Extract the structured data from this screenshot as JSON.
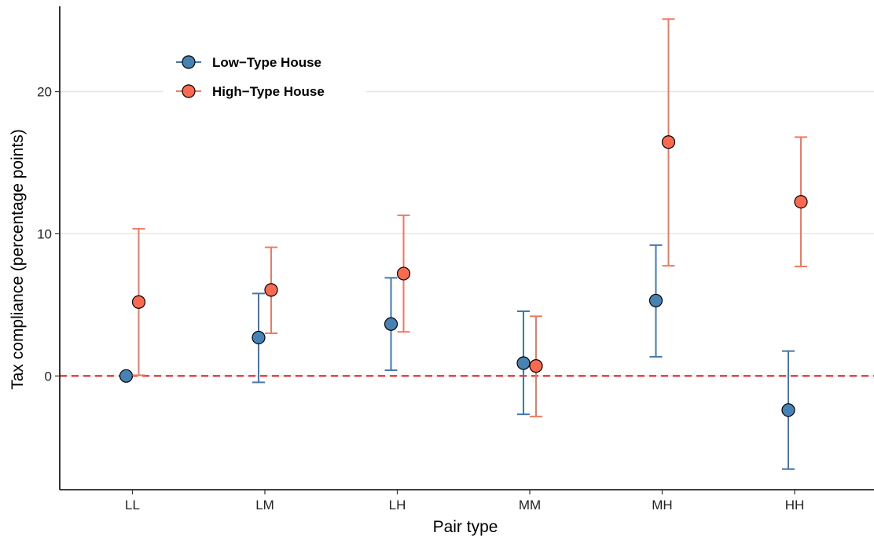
{
  "chart_data": {
    "type": "scatter",
    "title": "",
    "xlabel": "Pair type",
    "ylabel": "Tax compliance (percentage points)",
    "categories": [
      "LL",
      "LM",
      "LH",
      "MM",
      "MH",
      "HH"
    ],
    "ylim": [
      -8,
      26
    ],
    "yticks": [
      0,
      10,
      20
    ],
    "grid": "horizontal major",
    "reference_line": {
      "y": 0,
      "style": "dashed",
      "color": "#e41a1c"
    },
    "legend_position": "top-left",
    "series": [
      {
        "name": "Low−Type House",
        "color": "#4477aa",
        "fill": "#4682b4",
        "values": [
          0,
          2.7,
          3.65,
          0.9,
          5.3,
          -2.4
        ],
        "lower": [
          null,
          -0.45,
          0.4,
          -2.7,
          1.35,
          -6.55
        ],
        "upper": [
          null,
          5.8,
          6.9,
          4.55,
          9.2,
          1.75
        ]
      },
      {
        "name": "High−Type House",
        "color": "#f4775e",
        "fill": "#fa6a50",
        "values": [
          5.2,
          6.05,
          7.2,
          0.7,
          16.45,
          12.25
        ],
        "lower": [
          0.05,
          3.0,
          3.1,
          -2.85,
          7.75,
          7.7
        ],
        "upper": [
          10.35,
          9.05,
          11.3,
          4.2,
          25.1,
          16.8
        ]
      }
    ]
  }
}
